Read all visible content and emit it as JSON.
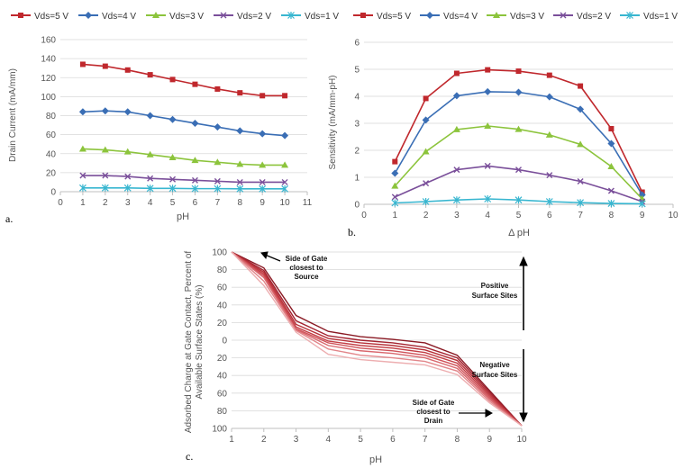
{
  "chart_data": [
    {
      "type": "line",
      "panel_label": "a.",
      "xlabel": "pH",
      "ylabel": "Drain Current (mA/mm)",
      "xlim": [
        0,
        11
      ],
      "ylim": [
        0,
        160
      ],
      "xticks": [
        0,
        1,
        2,
        3,
        4,
        5,
        6,
        7,
        8,
        9,
        10,
        11
      ],
      "yticks": [
        0,
        20,
        40,
        60,
        80,
        100,
        120,
        140,
        160
      ],
      "grid": "horizontal",
      "legend": "top",
      "x": [
        1,
        2,
        3,
        4,
        5,
        6,
        7,
        8,
        9,
        10
      ],
      "series": [
        {
          "name": "Vds=5 V",
          "color": "#c0282d",
          "marker": "square",
          "values": [
            134,
            132,
            128,
            123,
            118,
            113,
            108,
            104,
            101,
            101
          ]
        },
        {
          "name": "Vds=4 V",
          "color": "#3a6eb5",
          "marker": "diamond",
          "values": [
            84,
            85,
            84,
            80,
            76,
            72,
            68,
            64,
            61,
            59
          ]
        },
        {
          "name": "Vds=3 V",
          "color": "#8cc43c",
          "marker": "triangle",
          "values": [
            45,
            44,
            42,
            39,
            36,
            33,
            31,
            29,
            28,
            28
          ]
        },
        {
          "name": "Vds=2 V",
          "color": "#7a4f9a",
          "marker": "x",
          "values": [
            17,
            17,
            16,
            14,
            13,
            12,
            11,
            10,
            10,
            10
          ]
        },
        {
          "name": "Vds=1 V",
          "color": "#38b6d0",
          "marker": "star",
          "values": [
            4,
            4,
            4,
            3.5,
            3.5,
            3.2,
            3.2,
            3,
            3,
            3
          ]
        }
      ]
    },
    {
      "type": "line",
      "panel_label": "b.",
      "xlabel": "Δ pH",
      "ylabel": "Sensitivity (mA/mm-pH)",
      "xlim": [
        0,
        10
      ],
      "ylim": [
        0,
        6
      ],
      "xticks": [
        0,
        1,
        2,
        3,
        4,
        5,
        6,
        7,
        8,
        9,
        10
      ],
      "yticks": [
        0,
        1,
        2,
        3,
        4,
        5,
        6
      ],
      "grid": "horizontal",
      "legend": "top",
      "x": [
        1,
        2,
        3,
        4,
        5,
        6,
        7,
        8,
        9
      ],
      "series": [
        {
          "name": "Vds=5 V",
          "color": "#c0282d",
          "marker": "square",
          "values": [
            1.58,
            3.92,
            4.85,
            4.98,
            4.93,
            4.78,
            4.38,
            2.8,
            0.45
          ]
        },
        {
          "name": "Vds=4 V",
          "color": "#3a6eb5",
          "marker": "diamond",
          "values": [
            1.15,
            3.12,
            4.02,
            4.17,
            4.15,
            3.98,
            3.52,
            2.25,
            0.35
          ]
        },
        {
          "name": "Vds=3 V",
          "color": "#8cc43c",
          "marker": "triangle",
          "values": [
            0.68,
            1.95,
            2.77,
            2.9,
            2.78,
            2.57,
            2.22,
            1.4,
            0.2
          ]
        },
        {
          "name": "Vds=2 V",
          "color": "#7a4f9a",
          "marker": "x",
          "values": [
            0.27,
            0.78,
            1.28,
            1.42,
            1.28,
            1.08,
            0.85,
            0.5,
            0.1
          ]
        },
        {
          "name": "Vds=1 V",
          "color": "#38b6d0",
          "marker": "star",
          "values": [
            0.05,
            0.1,
            0.16,
            0.2,
            0.16,
            0.1,
            0.06,
            0.03,
            0.02
          ]
        }
      ]
    },
    {
      "type": "line",
      "panel_label": "c.",
      "xlabel": "pH",
      "ylabel_line1": "Adsorbed Charge at Gate Contact, Percent of",
      "ylabel_line2": "Available Surface States (%)",
      "xlim": [
        1,
        10
      ],
      "ylim": [
        -100,
        100
      ],
      "xticks": [
        1,
        2,
        3,
        4,
        5,
        6,
        7,
        8,
        9,
        10
      ],
      "yticks": [
        100,
        80,
        60,
        40,
        20,
        0,
        -20,
        -40,
        -60,
        -80,
        -100
      ],
      "ytick_labels": [
        "100",
        "80",
        "60",
        "40",
        "20",
        "0",
        "20",
        "40",
        "60",
        "80",
        "100"
      ],
      "grid": "horizontal",
      "x": [
        1,
        2,
        3,
        4,
        5,
        6,
        7,
        8,
        9,
        10
      ],
      "series": [
        {
          "color": "#8a1a24",
          "values": [
            100,
            82,
            28,
            10,
            4,
            1,
            -3,
            -17,
            -57,
            -97
          ]
        },
        {
          "color": "#a42330",
          "values": [
            100,
            79,
            22,
            5,
            0,
            -3,
            -8,
            -20,
            -59,
            -97
          ]
        },
        {
          "color": "#b73038",
          "values": [
            100,
            77,
            18,
            2,
            -3,
            -6,
            -11,
            -23,
            -61,
            -97
          ]
        },
        {
          "color": "#c33d44",
          "values": [
            100,
            75,
            15,
            -1,
            -6,
            -9,
            -14,
            -26,
            -63,
            -97
          ]
        },
        {
          "color": "#cf5259",
          "values": [
            100,
            73,
            13,
            -3,
            -9,
            -12,
            -17,
            -29,
            -65,
            -97
          ]
        },
        {
          "color": "#d9676d",
          "values": [
            100,
            71,
            12,
            -6,
            -12,
            -15,
            -20,
            -32,
            -67,
            -97
          ]
        },
        {
          "color": "#e2868a",
          "values": [
            100,
            67,
            11,
            -10,
            -17,
            -20,
            -24,
            -35,
            -69,
            -97
          ]
        },
        {
          "color": "#edaeb0",
          "values": [
            100,
            62,
            9,
            -16,
            -22,
            -25,
            -28,
            -39,
            -71,
            -97
          ]
        }
      ],
      "annotations": {
        "source": {
          "line1": "Side of Gate",
          "line2": "closest to",
          "line3": "Source"
        },
        "drain": {
          "line1": "Side of Gate",
          "line2": "closest to",
          "line3": "Drain"
        },
        "positive": {
          "line1": "Positive",
          "line2": "Surface Sites"
        },
        "negative": {
          "line1": "Negative",
          "line2": "Surface Sites"
        }
      }
    }
  ]
}
